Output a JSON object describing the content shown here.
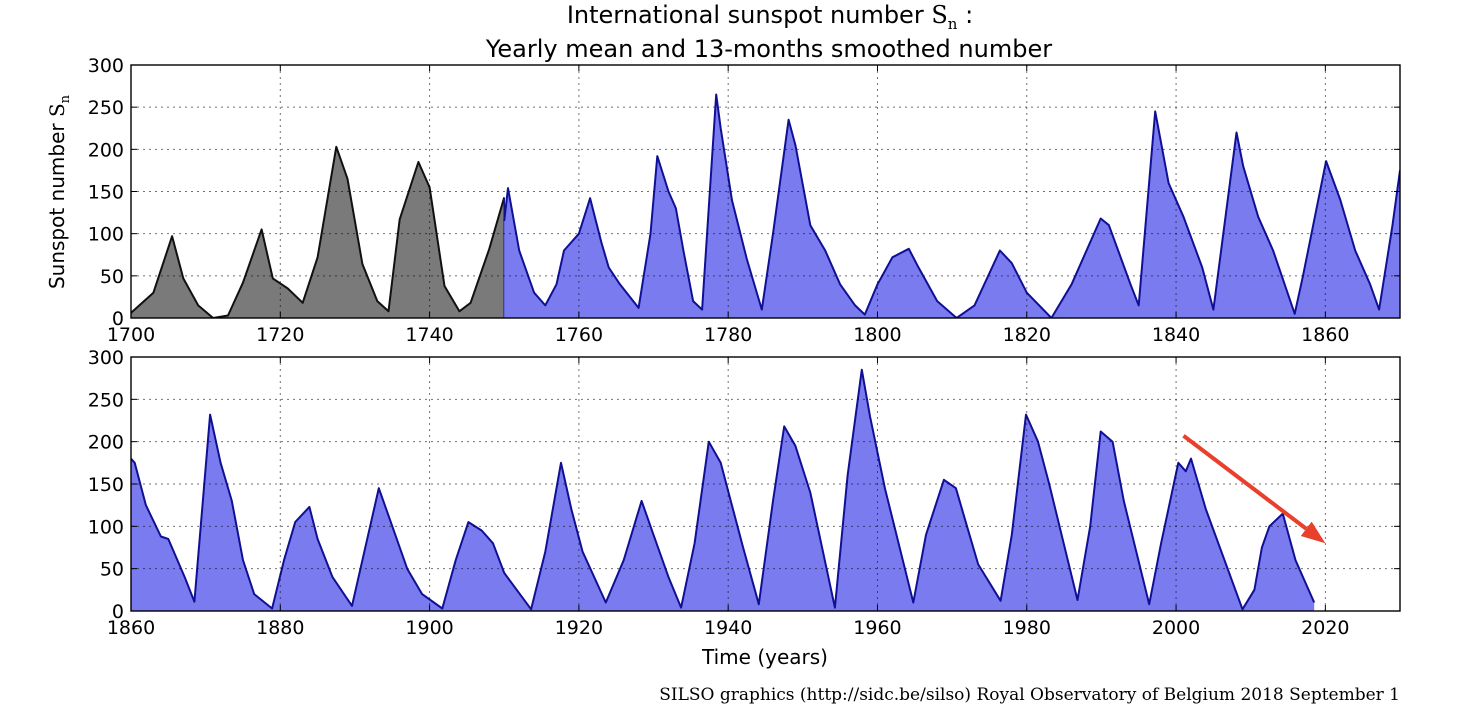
{
  "title": {
    "line1_text": "International sunspot number ",
    "line1_symbol": "S",
    "line1_subscript": "n",
    "line1_suffix": " :",
    "line2": "Yearly mean and 13-months smoothed number"
  },
  "ylabel": {
    "text": "Sunspot number ",
    "symbol": "S",
    "subscript": "n"
  },
  "xlabel": "Time (years)",
  "credit": "SILSO graphics (http://sidc.be/silso)  Royal Observatory of Belgium  2018 September 1",
  "colors": {
    "yearly_fill": "#7a7a7a",
    "yearly_line": "#111111",
    "smoothed_fill": "#7b7bf0",
    "smoothed_line": "#101095",
    "arrow": "#e8402a"
  },
  "chart_data": [
    {
      "type": "area",
      "panel": "top",
      "xlim": [
        1700,
        1870
      ],
      "ylim": [
        0,
        300
      ],
      "xticks": [
        "1700",
        "1720",
        "1740",
        "1760",
        "1780",
        "1800",
        "1820",
        "1840",
        "1860"
      ],
      "yticks": [
        "0",
        "50",
        "100",
        "150",
        "200",
        "250",
        "300"
      ],
      "grid": true,
      "series": [
        {
          "style": "yearly",
          "x": [
            1700,
            1703,
            1705.5,
            1707,
            1709,
            1711,
            1713,
            1715,
            1717.5,
            1719,
            1721,
            1723,
            1725,
            1727.5,
            1729,
            1731,
            1733,
            1734.5,
            1736,
            1738.5,
            1740,
            1742,
            1744,
            1745.5,
            1748,
            1750
          ],
          "y": [
            6,
            30,
            97,
            47,
            15,
            0,
            3,
            42,
            105,
            47,
            35,
            18,
            72,
            203,
            165,
            64,
            20,
            8,
            117,
            185,
            155,
            38,
            8,
            18,
            82,
            143
          ]
        },
        {
          "style": "smoothed",
          "x": [
            1750,
            1750.5,
            1752,
            1754,
            1755.5,
            1757,
            1758,
            1760,
            1761.5,
            1763,
            1764,
            1765.5,
            1768,
            1769.6,
            1770.5,
            1772,
            1773,
            1774,
            1775.3,
            1776.5,
            1778.4,
            1779,
            1780.5,
            1782.5,
            1784.5,
            1786,
            1788.1,
            1789,
            1791,
            1793,
            1795,
            1797,
            1798.3,
            1800,
            1802,
            1804.2,
            1805.5,
            1808,
            1810.6,
            1813,
            1816.4,
            1818,
            1820,
            1823.3,
            1826,
            1829.9,
            1831,
            1833.9,
            1835,
            1837.2,
            1839,
            1841,
            1843.5,
            1845,
            1848.1,
            1849,
            1851,
            1853,
            1855.9,
            1857,
            1860.1,
            1862,
            1864,
            1866,
            1867.2,
            1869,
            1870
          ],
          "y": [
            115,
            154,
            80,
            30,
            15,
            40,
            80,
            100,
            142,
            90,
            60,
            40,
            12,
            100,
            192,
            150,
            130,
            80,
            20,
            10,
            265,
            225,
            140,
            70,
            10,
            100,
            235,
            205,
            110,
            80,
            40,
            15,
            4,
            40,
            72,
            82,
            60,
            20,
            0,
            15,
            80,
            65,
            30,
            0,
            40,
            118,
            110,
            40,
            15,
            245,
            160,
            120,
            60,
            10,
            220,
            180,
            120,
            80,
            5,
            50,
            186,
            140,
            80,
            40,
            10,
            110,
            175
          ]
        }
      ]
    },
    {
      "type": "area",
      "panel": "bottom",
      "xlim": [
        1860,
        2030
      ],
      "ylim": [
        0,
        300
      ],
      "xticks": [
        "1860",
        "1880",
        "1900",
        "1920",
        "1940",
        "1960",
        "1980",
        "2000",
        "2020"
      ],
      "yticks": [
        "0",
        "50",
        "100",
        "150",
        "200",
        "250",
        "300"
      ],
      "grid": true,
      "series": [
        {
          "style": "smoothed",
          "x": [
            1860,
            1860.5,
            1862,
            1864,
            1865,
            1867.2,
            1868.5,
            1870.6,
            1872,
            1873.5,
            1875,
            1876.5,
            1878.9,
            1880.5,
            1882,
            1883.9,
            1885,
            1887,
            1889.6,
            1891,
            1893.2,
            1895,
            1897,
            1899,
            1901.7,
            1903.5,
            1905.2,
            1907,
            1908.5,
            1910,
            1913.6,
            1915.5,
            1917.6,
            1919,
            1920.5,
            1923.6,
            1926,
            1928.4,
            1930,
            1932,
            1933.7,
            1935.5,
            1937.4,
            1939,
            1940.5,
            1942,
            1944.1,
            1946,
            1947.5,
            1949,
            1951,
            1954.3,
            1956,
            1957.9,
            1959,
            1961,
            1964.8,
            1966.5,
            1968.9,
            1970.5,
            1972,
            1973.5,
            1976.5,
            1978,
            1979.9,
            1981.5,
            1983,
            1986.8,
            1988.5,
            1989.9,
            1991.5,
            1993,
            1996.4,
            1998,
            2000.3,
            2001.3,
            2002,
            2004,
            2008.9,
            2010.5,
            2011.5,
            2012.5,
            2014.3,
            2016,
            2018.5
          ],
          "y": [
            180,
            175,
            125,
            88,
            85,
            40,
            11,
            232,
            175,
            130,
            60,
            20,
            3,
            60,
            105,
            123,
            85,
            40,
            6,
            60,
            145,
            100,
            50,
            20,
            3,
            60,
            105,
            95,
            80,
            45,
            2,
            70,
            175,
            120,
            70,
            10,
            60,
            130,
            90,
            40,
            4,
            80,
            200,
            175,
            125,
            75,
            8,
            130,
            218,
            195,
            140,
            4,
            160,
            285,
            230,
            145,
            10,
            90,
            155,
            145,
            100,
            55,
            12,
            90,
            232,
            200,
            150,
            13,
            100,
            212,
            200,
            130,
            8,
            80,
            175,
            165,
            180,
            120,
            2,
            25,
            75,
            100,
            115,
            60,
            10
          ]
        }
      ],
      "annotations": [
        {
          "type": "arrow",
          "from": [
            2001,
            207
          ],
          "to": [
            2020,
            80
          ]
        }
      ]
    }
  ]
}
